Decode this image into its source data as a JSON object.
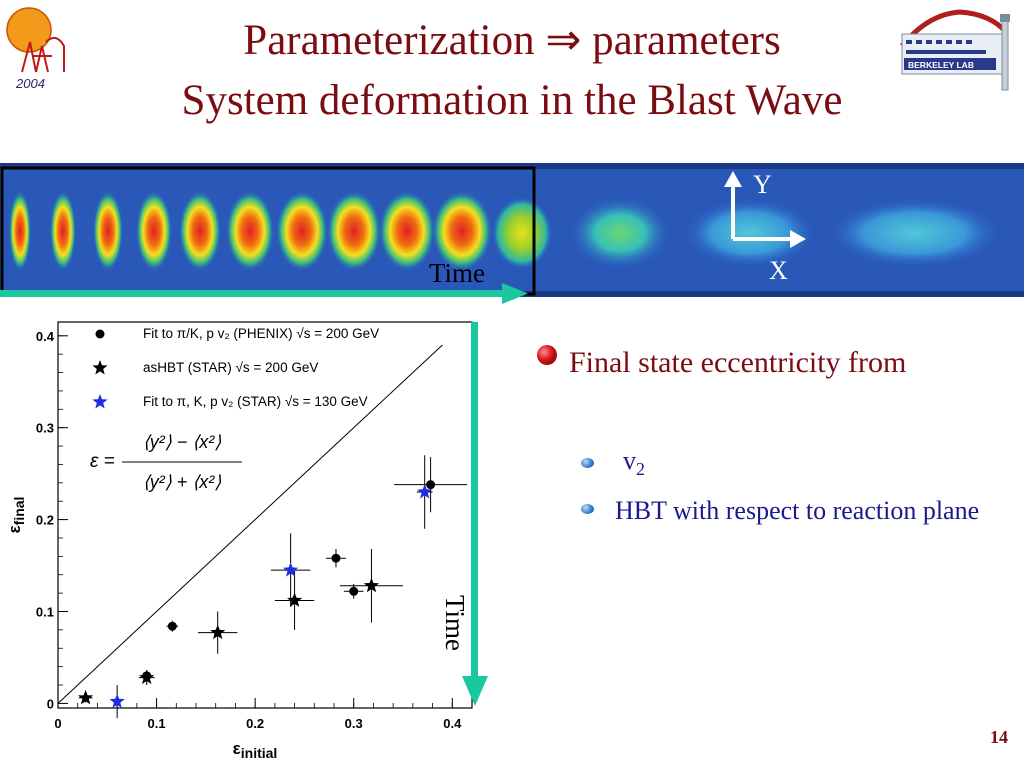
{
  "slide": {
    "title_line1": "Parameterization ⇒ parameters",
    "title_line2": "System deformation in the Blast Wave",
    "conference_logo_text": "2004",
    "lab_logo_text": "BERKELEY LAB",
    "strip_time_label": "Time",
    "axis_y_label": "Y",
    "axis_x_label": "X",
    "plot_time_label": "Time",
    "bullet_main": "Final state eccentricity from",
    "bullet_sub1": "v",
    "bullet_sub1_sub": "2",
    "bullet_sub2": "HBT with respect to reaction plane",
    "page_number": "14",
    "colors": {
      "title": "#7a0c12",
      "bullets": "#1a1a8c",
      "arrow": "#1ac8a0",
      "blue_marker": "#1f2fe0"
    }
  },
  "chart_data": {
    "type": "scatter",
    "xlabel": "ε",
    "xlabel_sub": "initial",
    "ylabel": "ε",
    "ylabel_sub": "final",
    "xlim": [
      0,
      0.42
    ],
    "ylim": [
      -0.005,
      0.415
    ],
    "xticks": [
      "0",
      "0.1",
      "0.2",
      "0.3",
      "0.4"
    ],
    "xtick_values": [
      0,
      0.1,
      0.2,
      0.3,
      0.4
    ],
    "yticks": [
      "0",
      "0.1",
      "0.2",
      "0.3",
      "0.4"
    ],
    "ytick_values": [
      0,
      0.1,
      0.2,
      0.3,
      0.4
    ],
    "diagonal_line": true,
    "formula_lhs": "ε =",
    "formula_numerator": "⟨y²⟩ − ⟨x²⟩",
    "formula_denominator": "⟨y²⟩ + ⟨x²⟩",
    "legend": [
      {
        "marker": "circle",
        "color": "#000000",
        "label": "Fit to  π/K, p v₂ (PHENIX) √s = 200 GeV"
      },
      {
        "marker": "star",
        "color": "#000000",
        "label": "asHBT (STAR) √s = 200 GeV"
      },
      {
        "marker": "star",
        "color": "#1f2fe0",
        "label": "Fit to  π, K, p v₂ (STAR) √s = 130 GeV"
      }
    ],
    "series": [
      {
        "name": "Fit to  π/K, p v₂ (PHENIX) √s = 200 GeV",
        "marker": "circle",
        "color": "#000000",
        "points": [
          {
            "x": 0.09,
            "y": 0.03,
            "xerr": 0.006,
            "yerr": 0.006
          },
          {
            "x": 0.116,
            "y": 0.084,
            "xerr": 0.006,
            "yerr": 0.006
          },
          {
            "x": 0.282,
            "y": 0.158,
            "xerr": 0.01,
            "yerr": 0.01
          },
          {
            "x": 0.3,
            "y": 0.122,
            "xerr": 0.01,
            "yerr": 0.008
          },
          {
            "x": 0.378,
            "y": 0.238,
            "xerr": 0.037,
            "yerr": 0.03
          }
        ]
      },
      {
        "name": "asHBT (STAR) √s = 200 GeV",
        "marker": "star",
        "color": "#000000",
        "points": [
          {
            "x": 0.028,
            "y": 0.006,
            "xerr": 0.007,
            "yerr": 0.005
          },
          {
            "x": 0.09,
            "y": 0.028,
            "xerr": 0.008,
            "yerr": 0.008
          },
          {
            "x": 0.162,
            "y": 0.077,
            "xerr": 0.02,
            "yerr": 0.023
          },
          {
            "x": 0.24,
            "y": 0.112,
            "xerr": 0.02,
            "yerr": 0.032
          },
          {
            "x": 0.318,
            "y": 0.128,
            "xerr": 0.032,
            "yerr": 0.04
          }
        ]
      },
      {
        "name": "Fit to  π, K, p v₂ (STAR) √s = 130 GeV",
        "marker": "star",
        "color": "#1f2fe0",
        "points": [
          {
            "x": 0.06,
            "y": 0.002,
            "xerr": 0.004,
            "yerr": 0.018
          },
          {
            "x": 0.236,
            "y": 0.145,
            "xerr": 0.02,
            "yerr": 0.04
          },
          {
            "x": 0.372,
            "y": 0.23,
            "xerr": 0.008,
            "yerr": 0.04
          }
        ]
      }
    ]
  }
}
